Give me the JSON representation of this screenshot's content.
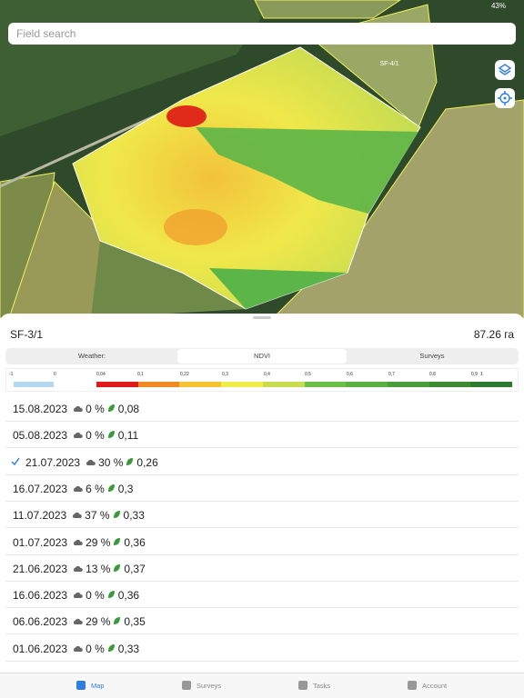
{
  "status": {
    "battery": "43%"
  },
  "search": {
    "placeholder": "Field search"
  },
  "map": {
    "field_label": "SF-4/1"
  },
  "field": {
    "name": "SF-3/1",
    "area": "87.26 га"
  },
  "tabs": [
    "Weather:",
    "NDVI",
    "Surveys"
  ],
  "legend": [
    "-1",
    "0",
    "0,04",
    "0,1",
    "0,22",
    "0,3",
    "0,4",
    "0,5",
    "0,6",
    "0,7",
    "0,8",
    "0,9",
    "1"
  ],
  "rows": [
    {
      "date": "15.08.2023",
      "cloud": "0 %",
      "ndvi": "0,08"
    },
    {
      "date": "05.08.2023",
      "cloud": "0 %",
      "ndvi": "0,11"
    },
    {
      "date": "21.07.2023",
      "cloud": "30 %",
      "ndvi": "0,26"
    },
    {
      "date": "16.07.2023",
      "cloud": "6 %",
      "ndvi": "0,3"
    },
    {
      "date": "11.07.2023",
      "cloud": "37 %",
      "ndvi": "0,33"
    },
    {
      "date": "01.07.2023",
      "cloud": "29 %",
      "ndvi": "0,36"
    },
    {
      "date": "21.06.2023",
      "cloud": "13 %",
      "ndvi": "0,37"
    },
    {
      "date": "16.06.2023",
      "cloud": "0 %",
      "ndvi": "0,36"
    },
    {
      "date": "06.06.2023",
      "cloud": "29 %",
      "ndvi": "0,35"
    },
    {
      "date": "01.06.2023",
      "cloud": "0 %",
      "ndvi": "0,33"
    }
  ],
  "tabbar": [
    "Map",
    "Surveys",
    "Tasks",
    "Account"
  ]
}
